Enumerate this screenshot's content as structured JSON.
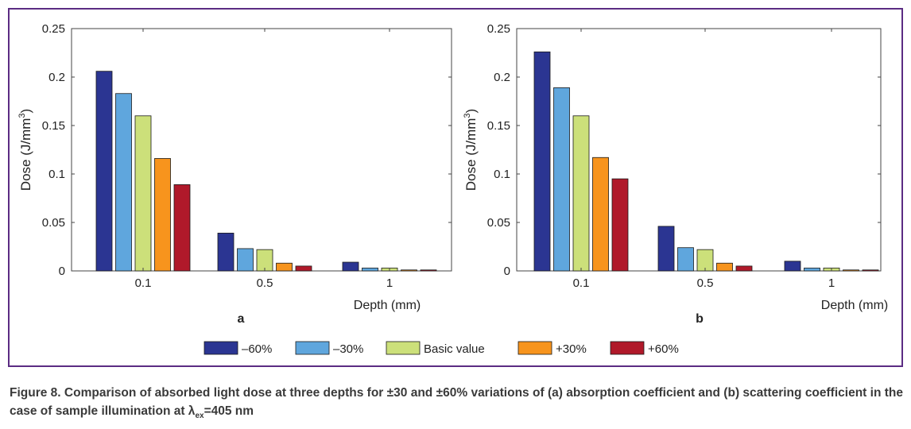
{
  "chart_data": [
    {
      "type": "bar",
      "panel_label": "a",
      "categories": [
        "0.1",
        "0.5",
        "1"
      ],
      "xlabel": "Depth (mm)",
      "ylabel_main": "Dose (J/mm",
      "ylabel_sup": "3",
      "ylabel_end": ")",
      "ylim": [
        0,
        0.25
      ],
      "yticks": [
        "0",
        "0.05",
        "0.1",
        "0.15",
        "0.2",
        "0.25"
      ],
      "series": [
        {
          "name": "–60%",
          "color": "#2b3592",
          "values": [
            0.206,
            0.039,
            0.009
          ]
        },
        {
          "name": "–30%",
          "color": "#5fa6dd",
          "values": [
            0.183,
            0.023,
            0.003
          ]
        },
        {
          "name": "Basic value",
          "color": "#cce07a",
          "values": [
            0.16,
            0.022,
            0.003
          ]
        },
        {
          "name": "+30%",
          "color": "#f7941d",
          "values": [
            0.116,
            0.008,
            0.001
          ]
        },
        {
          "name": "+60%",
          "color": "#b0192a",
          "values": [
            0.089,
            0.005,
            0.001
          ]
        }
      ]
    },
    {
      "type": "bar",
      "panel_label": "b",
      "categories": [
        "0.1",
        "0.5",
        "1"
      ],
      "xlabel": "Depth (mm)",
      "ylabel_main": "Dose (J/mm",
      "ylabel_sup": "3",
      "ylabel_end": ")",
      "ylim": [
        0,
        0.25
      ],
      "yticks": [
        "0",
        "0.05",
        "0.1",
        "0.15",
        "0.2",
        "0.25"
      ],
      "series": [
        {
          "name": "–60%",
          "color": "#2b3592",
          "values": [
            0.226,
            0.046,
            0.01
          ]
        },
        {
          "name": "–30%",
          "color": "#5fa6dd",
          "values": [
            0.189,
            0.024,
            0.003
          ]
        },
        {
          "name": "Basic value",
          "color": "#cce07a",
          "values": [
            0.16,
            0.022,
            0.003
          ]
        },
        {
          "name": "+30%",
          "color": "#f7941d",
          "values": [
            0.117,
            0.008,
            0.001
          ]
        },
        {
          "name": "+60%",
          "color": "#b0192a",
          "values": [
            0.095,
            0.005,
            0.001
          ]
        }
      ]
    }
  ],
  "legend": [
    {
      "name": "–60%",
      "color": "#2b3592"
    },
    {
      "name": "–30%",
      "color": "#5fa6dd"
    },
    {
      "name": "Basic value",
      "color": "#cce07a"
    },
    {
      "name": "+30%",
      "color": "#f7941d"
    },
    {
      "name": "+60%",
      "color": "#b0192a"
    }
  ],
  "caption": {
    "lead": "Figure 8. Comparison of absorbed light dose at three depths for ±30 and ±60% variations of (a) absorption coefficient and (b) scattering coefficient in the case of sample illumination at λ",
    "sub": "ex",
    "tail": "=405 nm"
  }
}
